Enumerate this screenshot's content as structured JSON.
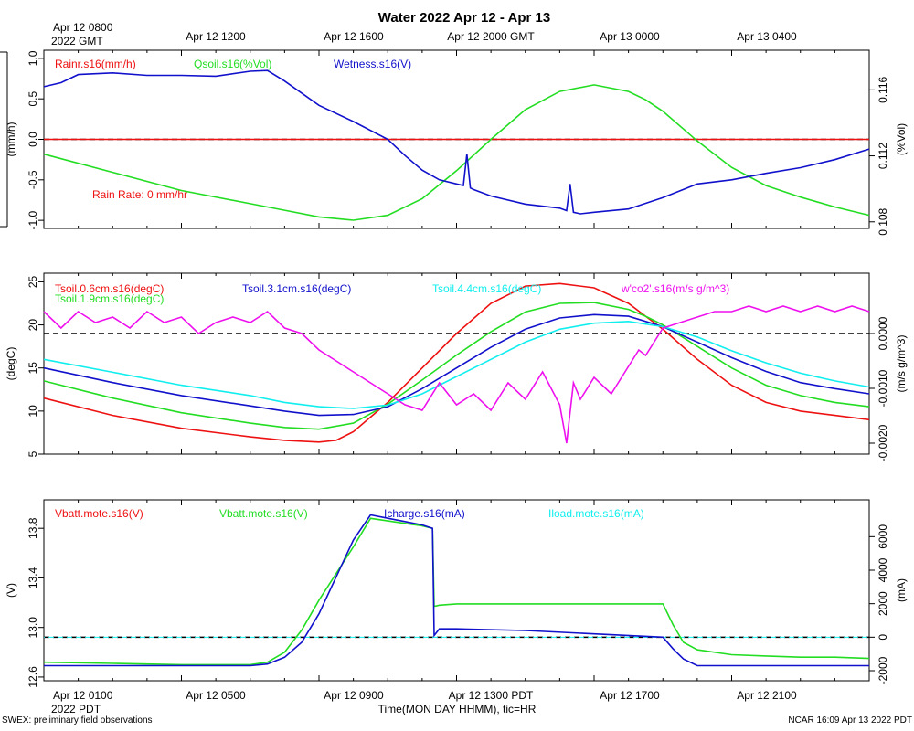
{
  "page": {
    "title": "Water 2022 Apr 12 - Apr 13",
    "xlabel": "Time(MON DAY HHMM), tic=HR",
    "footer_left": "SWEX: preliminary field observations",
    "footer_right": "NCAR 16:09 Apr 13 2022 PDT",
    "top_axis": [
      "Apr 12 1200",
      "Apr 12 1600",
      "Apr 12 2000 GMT",
      "Apr 13 0000",
      "Apr 13 0400"
    ],
    "top_first": [
      "Apr 12 0800",
      "2022 GMT"
    ],
    "bottom_axis": [
      "Apr 12 0500",
      "Apr 12 0900",
      "Apr 12 1300 PDT",
      "Apr 12 1700",
      "Apr 12 2100"
    ],
    "bottom_first": [
      "Apr 12 0100",
      "2022 PDT"
    ]
  },
  "colors": {
    "red": "#ee1111",
    "green": "#22dd22",
    "blue": "#1111cc",
    "cyan": "#11eeee",
    "magenta": "#ee11ee"
  },
  "chart_data": [
    {
      "type": "line",
      "xlim": [
        0.0,
        24.0
      ],
      "left_axis": {
        "label": "(mm/h)",
        "ylim": [
          -1.1,
          1.1
        ],
        "ticks": [
          -1.0,
          -0.5,
          0.0,
          0.5,
          1.0
        ],
        "tick_labels": [
          "-1.0",
          "-0.5",
          "0.0",
          "0.5",
          "1.0"
        ]
      },
      "right_axis": {
        "label": "(%Vol)",
        "ylim": [
          0.1076,
          0.1184
        ],
        "ticks": [
          0.108,
          0.112,
          0.116
        ],
        "tick_labels": [
          "0.108",
          "0.112",
          "0.116"
        ]
      },
      "zero_line": 0.0,
      "legend": [
        {
          "text": "Rainr.s16(mm/h)",
          "color": "red"
        },
        {
          "text": "Qsoil.s16(%Vol)",
          "color": "green"
        },
        {
          "text": "Wetness.s16(V)",
          "color": "blue"
        }
      ],
      "annotation": {
        "text": "Rain Rate: 0 mm/hr",
        "color": "red"
      },
      "series": [
        {
          "name": "Rainr.s16(mm/h)",
          "color": "red",
          "axis": "left",
          "x": [
            0,
            24
          ],
          "y": [
            0,
            0
          ]
        },
        {
          "name": "Qsoil.s16(%Vol)",
          "color": "green",
          "axis": "right",
          "x": [
            0,
            2,
            4,
            6,
            7,
            8,
            9,
            10,
            11,
            12,
            13,
            14,
            15,
            16,
            17,
            17.5,
            18,
            19,
            20,
            21,
            22,
            23,
            24
          ],
          "y": [
            0.1121,
            0.111,
            0.1099,
            0.1091,
            0.1087,
            0.1083,
            0.1081,
            0.1084,
            0.1094,
            0.1111,
            0.113,
            0.1148,
            0.1159,
            0.1163,
            0.1159,
            0.1154,
            0.1147,
            0.1129,
            0.1113,
            0.1102,
            0.1095,
            0.1089,
            0.1084
          ]
        },
        {
          "name": "Wetness.s16(V)",
          "color": "blue",
          "axis": "left",
          "x": [
            0,
            0.5,
            1,
            2,
            3,
            4,
            5,
            6,
            6.5,
            7,
            8,
            9,
            10,
            10.5,
            11,
            11.5,
            12,
            12.2,
            12.3,
            12.4,
            12.5,
            13,
            14,
            15,
            15.2,
            15.3,
            15.4,
            15.6,
            16,
            17,
            18,
            19,
            20,
            21,
            22,
            23,
            24
          ],
          "y": [
            0.65,
            0.7,
            0.8,
            0.82,
            0.79,
            0.79,
            0.78,
            0.84,
            0.85,
            0.72,
            0.42,
            0.22,
            0.0,
            -0.2,
            -0.38,
            -0.5,
            -0.55,
            -0.57,
            -0.18,
            -0.6,
            -0.62,
            -0.7,
            -0.8,
            -0.85,
            -0.88,
            -0.55,
            -0.9,
            -0.92,
            -0.9,
            -0.86,
            -0.72,
            -0.55,
            -0.5,
            -0.42,
            -0.35,
            -0.25,
            -0.12
          ]
        }
      ]
    },
    {
      "type": "line",
      "xlim": [
        0.0,
        24.0
      ],
      "left_axis": {
        "label": "(degC)",
        "ylim": [
          5,
          26
        ],
        "ticks": [
          5,
          10,
          15,
          20,
          25
        ],
        "tick_labels": [
          "5",
          "10",
          "15",
          "20",
          "25"
        ]
      },
      "right_axis": {
        "label": "(m/s g/m^3)",
        "ylim": [
          -0.0022,
          0.0011
        ],
        "ticks": [
          -0.002,
          -0.001,
          0.0
        ],
        "tick_labels": [
          "-0.0020",
          "-0.0010",
          "0.0000"
        ]
      },
      "zero_line": 0.0,
      "legend": [
        {
          "text": "Tsoil.0.6cm.s16(degC)",
          "color": "red"
        },
        {
          "text": "Tsoil.1.9cm.s16(degC)",
          "color": "green"
        },
        {
          "text": "Tsoil.3.1cm.s16(degC)",
          "color": "blue"
        },
        {
          "text": "Tsoil.4.4cm.s16(degC)",
          "color": "cyan"
        },
        {
          "text": "w'co2'.s16(m/s g/m^3)",
          "color": "magenta"
        }
      ],
      "series": [
        {
          "name": "Tsoil.0.6cm.s16(degC)",
          "color": "red",
          "axis": "left",
          "x": [
            0,
            2,
            4,
            6,
            7,
            8,
            8.5,
            9,
            10,
            11,
            12,
            13,
            14,
            15,
            16,
            17,
            17.5,
            18,
            19,
            20,
            21,
            22,
            23,
            24
          ],
          "y": [
            11.5,
            9.5,
            8.0,
            7.0,
            6.6,
            6.4,
            6.6,
            7.6,
            11.0,
            15.0,
            19.0,
            22.5,
            24.5,
            24.8,
            24.3,
            22.5,
            21.0,
            19.5,
            16.0,
            13.0,
            11.0,
            10.0,
            9.5,
            9.0
          ]
        },
        {
          "name": "Tsoil.1.9cm.s16(degC)",
          "color": "green",
          "axis": "left",
          "x": [
            0,
            2,
            4,
            6,
            7,
            8,
            9,
            10,
            11,
            12,
            13,
            14,
            15,
            16,
            17,
            17.5,
            18,
            19,
            20,
            21,
            22,
            23,
            24
          ],
          "y": [
            13.5,
            11.5,
            9.8,
            8.6,
            8.1,
            7.9,
            8.6,
            10.8,
            13.6,
            16.5,
            19.2,
            21.5,
            22.5,
            22.6,
            21.8,
            21.0,
            20.0,
            17.5,
            15.0,
            13.0,
            11.8,
            11.0,
            10.5
          ]
        },
        {
          "name": "Tsoil.3.1cm.s16(degC)",
          "color": "blue",
          "axis": "left",
          "x": [
            0,
            2,
            4,
            6,
            7,
            8,
            9,
            10,
            11,
            12,
            13,
            14,
            15,
            16,
            17,
            18,
            19,
            20,
            21,
            22,
            23,
            24
          ],
          "y": [
            15.0,
            13.3,
            11.8,
            10.6,
            10.0,
            9.5,
            9.6,
            10.5,
            12.6,
            15.0,
            17.4,
            19.5,
            20.8,
            21.2,
            21.0,
            19.8,
            18.0,
            16.2,
            14.6,
            13.3,
            12.6,
            12.0
          ]
        },
        {
          "name": "Tsoil.4.4cm.s16(degC)",
          "color": "cyan",
          "axis": "left",
          "x": [
            0,
            2,
            4,
            6,
            7,
            8,
            9,
            10,
            11,
            12,
            13,
            14,
            15,
            16,
            17,
            18,
            19,
            20,
            21,
            22,
            23,
            24
          ],
          "y": [
            16.0,
            14.5,
            13.0,
            11.8,
            11.0,
            10.5,
            10.3,
            10.7,
            12.0,
            14.0,
            16.0,
            18.0,
            19.5,
            20.2,
            20.4,
            19.8,
            18.6,
            17.0,
            15.6,
            14.4,
            13.5,
            12.8
          ]
        },
        {
          "name": "w'co2'.s16(m/s g/m^3)",
          "color": "magenta",
          "axis": "right",
          "x": [
            0,
            0.5,
            1,
            1.5,
            2,
            2.5,
            3,
            3.5,
            4,
            4.5,
            5,
            5.5,
            6,
            6.5,
            7,
            7.5,
            8,
            8.5,
            9,
            9.5,
            10,
            10.5,
            11,
            11.5,
            12,
            12.5,
            13,
            13.5,
            14,
            14.5,
            15,
            15.2,
            15.4,
            15.6,
            16,
            16.5,
            17,
            17.3,
            17.5,
            17.7,
            18,
            18.5,
            19,
            19.5,
            20,
            20.5,
            21,
            21.5,
            22,
            22.5,
            23,
            23.5,
            24
          ],
          "y": [
            0.0004,
            0.0001,
            0.0004,
            0.0002,
            0.0003,
            0.0001,
            0.0004,
            0.0002,
            0.0003,
            0.0,
            0.0002,
            0.0003,
            0.0002,
            0.0004,
            0.0001,
            0.0,
            -0.0003,
            -0.0005,
            -0.0007,
            -0.0009,
            -0.0011,
            -0.0013,
            -0.0014,
            -0.0009,
            -0.0013,
            -0.0011,
            -0.0014,
            -0.0009,
            -0.0012,
            -0.0007,
            -0.0013,
            -0.002,
            -0.0009,
            -0.0012,
            -0.0008,
            -0.0011,
            -0.0006,
            -0.0003,
            -0.0004,
            -0.0002,
            0.0001,
            0.0002,
            0.0003,
            0.0004,
            0.0004,
            0.0005,
            0.0004,
            0.0005,
            0.0004,
            0.0005,
            0.0004,
            0.0005,
            0.0004
          ]
        }
      ]
    },
    {
      "type": "line",
      "xlim": [
        0.0,
        24.0
      ],
      "left_axis": {
        "label": "(V)",
        "ylim": [
          12.57,
          14.03
        ],
        "ticks": [
          12.6,
          13.0,
          13.4,
          13.8
        ],
        "tick_labels": [
          "12.6",
          "13.0",
          "13.4",
          "13.8"
        ]
      },
      "right_axis": {
        "label": "(mA)",
        "ylim": [
          -2600,
          8200
        ],
        "ticks": [
          -2000,
          0,
          2000,
          4000,
          6000
        ],
        "tick_labels": [
          "-2000",
          "0",
          "2000",
          "4000",
          "6000"
        ]
      },
      "zero_line": 0.0,
      "legend": [
        {
          "text": "Vbatt.mote.s16(V)",
          "color": "red"
        },
        {
          "text": "Vbatt.mote.s16(V)",
          "color": "green"
        },
        {
          "text": "Icharge.s16(mA)",
          "color": "blue"
        },
        {
          "text": "Iload.mote.s16(mA)",
          "color": "cyan"
        }
      ],
      "series": [
        {
          "name": "Vbatt.mote.s16(V)",
          "color": "green",
          "axis": "left",
          "x": [
            0,
            2,
            4,
            6,
            6.5,
            7,
            7.5,
            8,
            9,
            9.5,
            10,
            10.5,
            11,
            11.3,
            11.35,
            11.5,
            12,
            14,
            16,
            18,
            18.3,
            18.6,
            19,
            20,
            21,
            22,
            23,
            24
          ],
          "y": [
            12.72,
            12.71,
            12.7,
            12.7,
            12.72,
            12.8,
            12.98,
            13.22,
            13.65,
            13.88,
            13.86,
            13.84,
            13.82,
            13.8,
            13.17,
            13.18,
            13.19,
            13.19,
            13.19,
            13.19,
            13.02,
            12.88,
            12.82,
            12.78,
            12.77,
            12.76,
            12.76,
            12.75
          ]
        },
        {
          "name": "Icharge.s16(mA)",
          "color": "blue",
          "axis": "right",
          "x": [
            0,
            2,
            4,
            6,
            6.5,
            7,
            7.5,
            8,
            9,
            9.5,
            10,
            10.5,
            11,
            11.3,
            11.35,
            11.5,
            12,
            14,
            16,
            18,
            18.3,
            18.6,
            19,
            20,
            22,
            24
          ],
          "y": [
            -1700,
            -1700,
            -1700,
            -1700,
            -1600,
            -1200,
            -300,
            1400,
            5800,
            7300,
            7100,
            6900,
            6700,
            6500,
            100,
            500,
            500,
            400,
            200,
            0,
            -700,
            -1300,
            -1700,
            -1700,
            -1700,
            -1700
          ]
        }
      ]
    }
  ]
}
